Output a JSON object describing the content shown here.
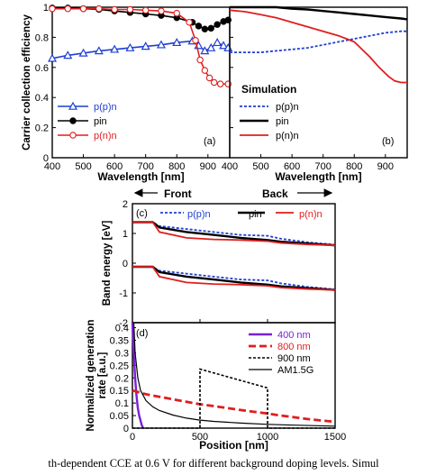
{
  "caption": "th-dependent CCE at 0.6 V for different background doping levels. Simul",
  "colors": {
    "blue": "#1f3fd1",
    "black": "#000000",
    "red": "#e01e1e",
    "purple": "#7a1fd6"
  },
  "chart_data": [
    {
      "id": "a",
      "type": "line",
      "panel_label": "(a)",
      "xlabel": "Wavelength [nm]",
      "ylabel": "Carrier collection efficiency",
      "xlim": [
        400,
        970
      ],
      "ylim": [
        0,
        1
      ],
      "xticks": [
        400,
        500,
        600,
        700,
        800,
        900
      ],
      "yticks": [
        0,
        0.2,
        0.4,
        0.6,
        0.8,
        1
      ],
      "ytick_labels": [
        "0",
        "0.2",
        "0.4",
        "0.6",
        "0.8",
        "1"
      ],
      "legend_position": "lower-left",
      "series": [
        {
          "name": "p(p)n",
          "color": "#1f3fd1",
          "marker": "triangle-open",
          "x": [
            400,
            450,
            500,
            550,
            600,
            650,
            700,
            750,
            800,
            850,
            870,
            890,
            910,
            930,
            950,
            965
          ],
          "y": [
            0.66,
            0.68,
            0.695,
            0.71,
            0.72,
            0.73,
            0.74,
            0.75,
            0.765,
            0.775,
            0.745,
            0.71,
            0.73,
            0.765,
            0.745,
            0.73
          ]
        },
        {
          "name": "pin",
          "color": "#000000",
          "marker": "circle-filled",
          "x": [
            400,
            450,
            500,
            550,
            600,
            650,
            700,
            750,
            800,
            850,
            870,
            890,
            910,
            930,
            950,
            965
          ],
          "y": [
            0.995,
            0.995,
            0.99,
            0.985,
            0.975,
            0.965,
            0.955,
            0.945,
            0.93,
            0.9,
            0.875,
            0.855,
            0.86,
            0.885,
            0.905,
            0.915
          ]
        },
        {
          "name": "p(n)n",
          "color": "#e01e1e",
          "marker": "circle-open",
          "x": [
            400,
            450,
            500,
            550,
            600,
            650,
            700,
            750,
            800,
            840,
            860,
            875,
            890,
            905,
            920,
            940,
            965
          ],
          "y": [
            0.99,
            0.99,
            0.99,
            0.99,
            0.985,
            0.985,
            0.98,
            0.975,
            0.96,
            0.9,
            0.78,
            0.65,
            0.58,
            0.53,
            0.5,
            0.49,
            0.49
          ]
        }
      ]
    },
    {
      "id": "b",
      "type": "line",
      "panel_label": "(b)",
      "xlabel": "Wavelength [nm]",
      "xlim": [
        400,
        970
      ],
      "ylim": [
        0,
        1
      ],
      "xticks": [
        400,
        500,
        600,
        700,
        800,
        900
      ],
      "legend_title": "Simulation",
      "legend_position": "lower-left",
      "series": [
        {
          "name": "p(p)n",
          "color": "#1f3fd1",
          "style": "dotted",
          "x": [
            400,
            450,
            500,
            550,
            600,
            650,
            700,
            750,
            800,
            850,
            900,
            950,
            970
          ],
          "y": [
            0.7,
            0.7,
            0.7,
            0.71,
            0.72,
            0.73,
            0.75,
            0.77,
            0.79,
            0.81,
            0.83,
            0.84,
            0.84
          ]
        },
        {
          "name": "pin",
          "color": "#000000",
          "style": "solid",
          "x": [
            400,
            450,
            500,
            550,
            600,
            650,
            700,
            750,
            800,
            850,
            900,
            950,
            970
          ],
          "y": [
            1.0,
            1.0,
            1.0,
            1.0,
            0.99,
            0.985,
            0.975,
            0.965,
            0.955,
            0.945,
            0.935,
            0.925,
            0.92
          ]
        },
        {
          "name": "p(n)n",
          "color": "#e01e1e",
          "style": "solid",
          "x": [
            400,
            450,
            500,
            550,
            600,
            650,
            700,
            750,
            800,
            850,
            880,
            910,
            930,
            950,
            970
          ],
          "y": [
            0.98,
            0.97,
            0.95,
            0.93,
            0.9,
            0.87,
            0.84,
            0.81,
            0.77,
            0.67,
            0.6,
            0.54,
            0.51,
            0.5,
            0.5
          ]
        }
      ]
    },
    {
      "id": "c",
      "type": "line",
      "panel_label": "(c)",
      "xlabel": "",
      "ylabel": "Band energy [eV]",
      "xlim": [
        0,
        1500
      ],
      "ylim": [
        -2,
        2
      ],
      "yticks": [
        -2,
        -1,
        0,
        1,
        2
      ],
      "legend_position": "top",
      "annotations": [
        "Front",
        "Back"
      ],
      "series": [
        {
          "name": "p(p)n",
          "color": "#1f3fd1",
          "style": "dotted",
          "x": [
            0,
            150,
            200,
            400,
            600,
            800,
            1000,
            1100,
            1300,
            1500
          ],
          "y_top": [
            1.38,
            1.38,
            1.25,
            1.15,
            1.05,
            0.95,
            0.92,
            0.82,
            0.7,
            0.62
          ],
          "y_bottom": [
            -0.12,
            -0.12,
            -0.25,
            -0.35,
            -0.45,
            -0.55,
            -0.58,
            -0.68,
            -0.8,
            -0.88
          ]
        },
        {
          "name": "pin",
          "color": "#000000",
          "style": "solid",
          "x": [
            0,
            150,
            200,
            400,
            600,
            800,
            1000,
            1100,
            1300,
            1500
          ],
          "y_top": [
            1.38,
            1.38,
            1.2,
            1.05,
            0.95,
            0.85,
            0.78,
            0.72,
            0.66,
            0.6
          ],
          "y_bottom": [
            -0.12,
            -0.12,
            -0.3,
            -0.45,
            -0.55,
            -0.65,
            -0.72,
            -0.78,
            -0.84,
            -0.9
          ]
        },
        {
          "name": "p(n)n",
          "color": "#e01e1e",
          "style": "solid",
          "x": [
            0,
            150,
            200,
            400,
            600,
            800,
            1000,
            1100,
            1300,
            1500
          ],
          "y_top": [
            1.38,
            1.38,
            1.05,
            0.85,
            0.8,
            0.78,
            0.74,
            0.68,
            0.63,
            0.6
          ],
          "y_bottom": [
            -0.12,
            -0.12,
            -0.45,
            -0.65,
            -0.7,
            -0.72,
            -0.76,
            -0.82,
            -0.87,
            -0.9
          ]
        }
      ]
    },
    {
      "id": "d",
      "type": "line",
      "panel_label": "(d)",
      "xlabel": "Position [nm]",
      "ylabel": "Normalized generation rate [a.u.]",
      "xlim": [
        0,
        1500
      ],
      "ylim": [
        0,
        0.42
      ],
      "xticks": [
        0,
        500,
        1000,
        1500
      ],
      "yticks": [
        0,
        0.05,
        0.1,
        0.15,
        0.2,
        0.25,
        0.3,
        0.35,
        0.4
      ],
      "ytick_labels": [
        "0",
        "0.05",
        "0.1",
        "0.15",
        "0.2",
        "0.25",
        "0.3",
        "0.35",
        "0.4"
      ],
      "legend_position": "top-right",
      "series": [
        {
          "name": "400 nm",
          "color": "#7a1fd6",
          "style": "solid",
          "x": [
            0,
            10,
            20,
            30,
            40,
            50,
            60,
            70,
            80
          ],
          "y": [
            0.42,
            0.3,
            0.2,
            0.13,
            0.08,
            0.05,
            0.03,
            0.01,
            0.0
          ]
        },
        {
          "name": "800 nm",
          "color": "#e01e1e",
          "style": "dashed",
          "x": [
            0,
            100,
            200,
            300,
            400,
            500,
            600,
            700,
            800,
            900,
            1000,
            1100,
            1200,
            1300,
            1400,
            1500
          ],
          "y": [
            0.15,
            0.135,
            0.125,
            0.115,
            0.105,
            0.095,
            0.088,
            0.08,
            0.072,
            0.065,
            0.058,
            0.05,
            0.043,
            0.036,
            0.03,
            0.025
          ]
        },
        {
          "name": "900 nm",
          "color": "#000000",
          "style": "dotted",
          "x": [
            0,
            500,
            500,
            1000,
            1000,
            1500
          ],
          "y": [
            0.0,
            0.0,
            0.235,
            0.16,
            0.0,
            0.0
          ]
        },
        {
          "name": "AM1.5G",
          "color": "#000000",
          "style": "solid",
          "x": [
            10,
            20,
            40,
            60,
            100,
            150,
            200,
            300,
            400,
            500,
            600,
            800,
            1000,
            1200,
            1500
          ],
          "y": [
            0.42,
            0.3,
            0.2,
            0.15,
            0.11,
            0.085,
            0.07,
            0.052,
            0.04,
            0.032,
            0.027,
            0.02,
            0.015,
            0.012,
            0.008
          ]
        }
      ]
    }
  ]
}
